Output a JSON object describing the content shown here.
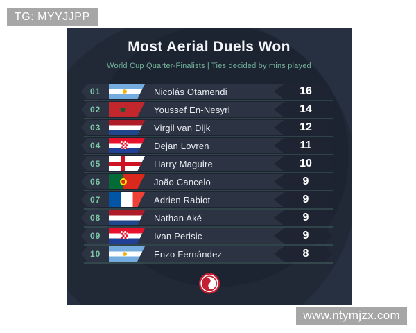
{
  "overlays": {
    "tg_label": "TG: MYYJJPP",
    "watermark": "www.ntymjzx.com"
  },
  "card": {
    "title": "Most Aerial Duels Won",
    "subtitle": "World Cup Quarter-Finalists | Ties decided by mins played",
    "logo": "red-swirl-brand-logo"
  },
  "colors": {
    "accent_teal": "#7cc7a8",
    "subtitle_teal": "#74b29b",
    "card_bg": "#273040",
    "row_bg": "#2c3342",
    "value_badge_bg": "#1e2431",
    "logo_red": "#c41f33",
    "overlay_gray": "#a6a6a6"
  },
  "chart_data": {
    "type": "table",
    "title": "Most Aerial Duels Won",
    "subtitle": "World Cup Quarter-Finalists | Ties decided by mins played",
    "columns": [
      "rank",
      "country",
      "player",
      "aerial_duels_won"
    ],
    "rows": [
      [
        1,
        "Argentina",
        "Nicolás Otamendi",
        16
      ],
      [
        2,
        "Morocco",
        "Youssef En-Nesyri",
        14
      ],
      [
        3,
        "Netherlands",
        "Virgil van Dijk",
        12
      ],
      [
        4,
        "Croatia",
        "Dejan Lovren",
        11
      ],
      [
        5,
        "England",
        "Harry Maguire",
        10
      ],
      [
        6,
        "Portugal",
        "João Cancelo",
        9
      ],
      [
        7,
        "France",
        "Adrien Rabiot",
        9
      ],
      [
        8,
        "Netherlands",
        "Nathan Aké",
        9
      ],
      [
        9,
        "Croatia",
        "Ivan Perisic",
        9
      ],
      [
        10,
        "Argentina",
        "Enzo Fernández",
        8
      ]
    ]
  }
}
